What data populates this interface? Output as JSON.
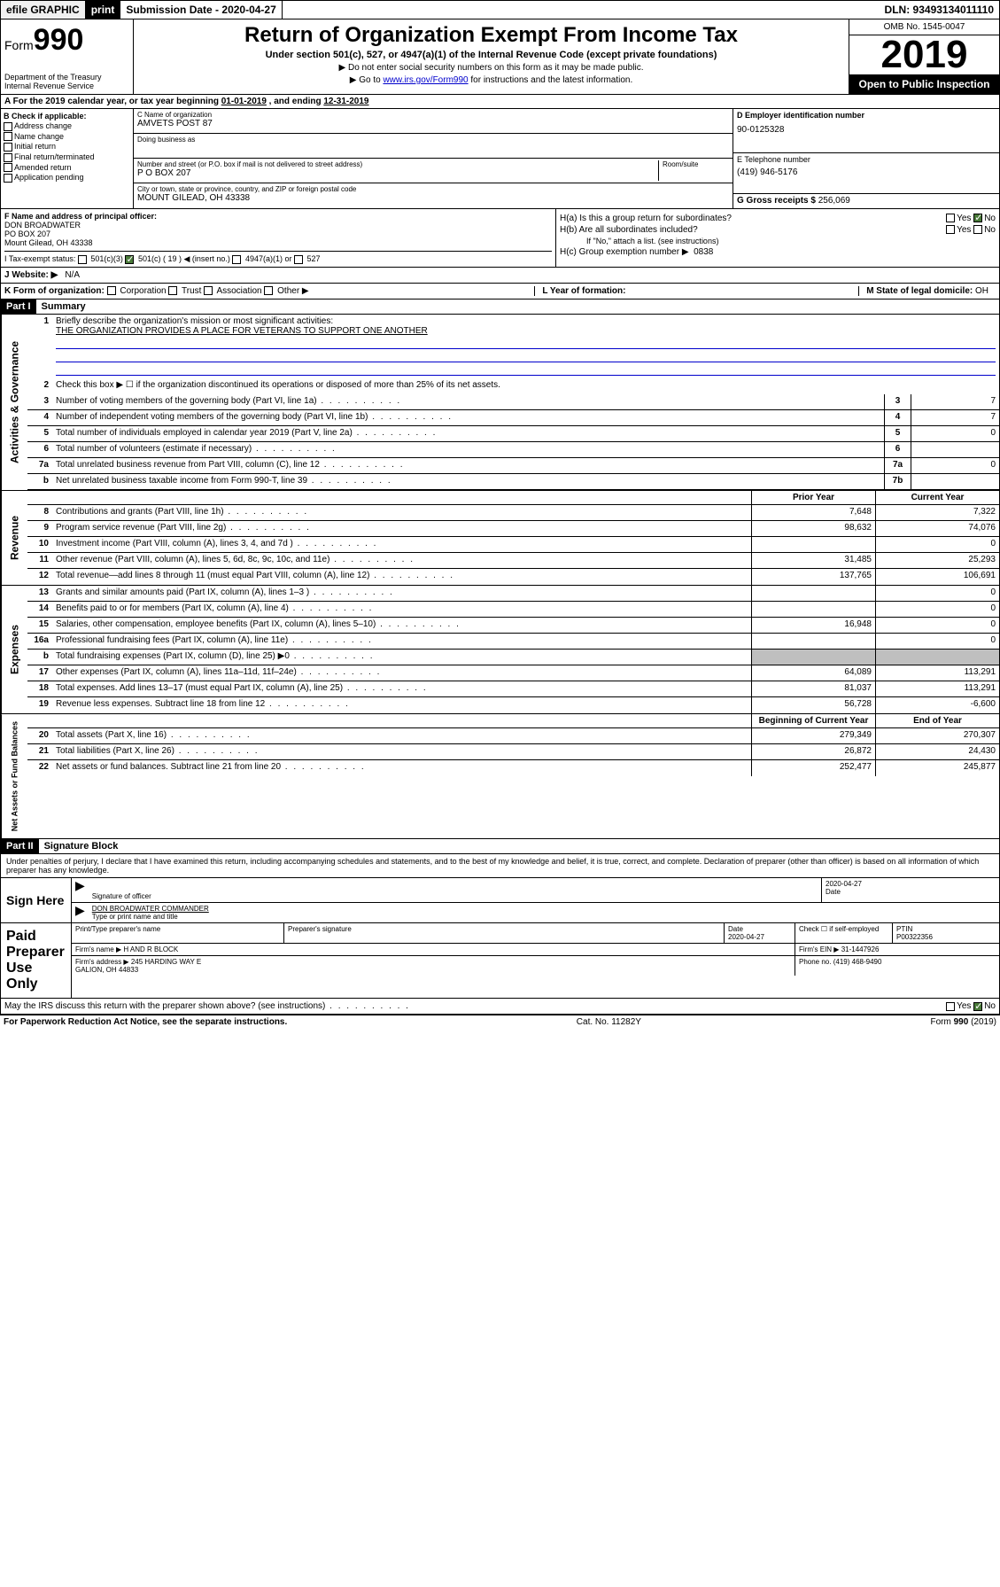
{
  "topbar": {
    "efile": "efile GRAPHIC",
    "print": "print",
    "submission_label": "Submission Date",
    "submission_date": "2020-04-27",
    "dln_label": "DLN:",
    "dln": "93493134011110"
  },
  "header": {
    "form_prefix": "Form",
    "form_number": "990",
    "title": "Return of Organization Exempt From Income Tax",
    "subtitle": "Under section 501(c), 527, or 4947(a)(1) of the Internal Revenue Code (except private foundations)",
    "note1": "▶ Do not enter social security numbers on this form as it may be made public.",
    "note2_pre": "▶ Go to ",
    "note2_link": "www.irs.gov/Form990",
    "note2_post": " for instructions and the latest information.",
    "dept": "Department of the Treasury\nInternal Revenue Service",
    "omb": "OMB No. 1545-0047",
    "year": "2019",
    "inspection": "Open to Public Inspection"
  },
  "period": {
    "text_pre": "A For the 2019 calendar year, or tax year beginning ",
    "begin": "01-01-2019",
    "text_mid": " , and ending ",
    "end": "12-31-2019"
  },
  "section_b": {
    "header": "B Check if applicable:",
    "items": [
      "Address change",
      "Name change",
      "Initial return",
      "Final return/terminated",
      "Amended return",
      "Application pending"
    ]
  },
  "section_c": {
    "name_label": "C Name of organization",
    "name": "AMVETS POST 87",
    "dba_label": "Doing business as",
    "dba": "",
    "addr_label": "Number and street (or P.O. box if mail is not delivered to street address)",
    "room_label": "Room/suite",
    "addr": "P O BOX 207",
    "city_label": "City or town, state or province, country, and ZIP or foreign postal code",
    "city": "MOUNT GILEAD, OH  43338"
  },
  "section_d": {
    "ein_label": "D Employer identification number",
    "ein": "90-0125328",
    "phone_label": "E Telephone number",
    "phone": "(419) 946-5176",
    "gross_label": "G Gross receipts $",
    "gross": "256,069"
  },
  "section_f": {
    "label": "F Name and address of principal officer:",
    "name": "DON BROADWATER",
    "addr1": "PO BOX 207",
    "addr2": "Mount Gilead, OH  43338"
  },
  "section_h": {
    "ha_label": "H(a)  Is this a group return for subordinates?",
    "hb_label": "H(b)  Are all subordinates included?",
    "hb_note": "If \"No,\" attach a list. (see instructions)",
    "hc_label": "H(c)  Group exemption number ▶",
    "hc_val": "0838",
    "yes": "Yes",
    "no": "No"
  },
  "section_i": {
    "label": "I Tax-exempt status:",
    "opts": [
      "501(c)(3)",
      "501(c) ( 19 ) ◀ (insert no.)",
      "4947(a)(1) or",
      "527"
    ]
  },
  "section_j": {
    "label": "J   Website: ▶",
    "val": "N/A"
  },
  "section_k": {
    "label": "K Form of organization:",
    "opts": [
      "Corporation",
      "Trust",
      "Association",
      "Other ▶"
    ]
  },
  "section_l": {
    "label": "L Year of formation:",
    "val": ""
  },
  "section_m": {
    "label": "M State of legal domicile:",
    "val": "OH"
  },
  "part1": {
    "header": "Part I",
    "title": "Summary",
    "mission_label": "Briefly describe the organization's mission or most significant activities:",
    "mission": "THE ORGANIZATION PROVIDES A PLACE FOR VETERANS TO SUPPORT ONE ANOTHER",
    "line2": "Check this box ▶ ☐  if the organization discontinued its operations or disposed of more than 25% of its net assets.",
    "side_governance": "Activities & Governance",
    "side_revenue": "Revenue",
    "side_expenses": "Expenses",
    "side_netassets": "Net Assets or Fund Balances",
    "col_prior": "Prior Year",
    "col_current": "Current Year",
    "col_begin": "Beginning of Current Year",
    "col_end": "End of Year",
    "lines_gov": [
      {
        "n": "3",
        "d": "Number of voting members of the governing body (Part VI, line 1a)",
        "box": "3",
        "v": "7"
      },
      {
        "n": "4",
        "d": "Number of independent voting members of the governing body (Part VI, line 1b)",
        "box": "4",
        "v": "7"
      },
      {
        "n": "5",
        "d": "Total number of individuals employed in calendar year 2019 (Part V, line 2a)",
        "box": "5",
        "v": "0"
      },
      {
        "n": "6",
        "d": "Total number of volunteers (estimate if necessary)",
        "box": "6",
        "v": ""
      },
      {
        "n": "7a",
        "d": "Total unrelated business revenue from Part VIII, column (C), line 12",
        "box": "7a",
        "v": "0"
      },
      {
        "n": "b",
        "d": "Net unrelated business taxable income from Form 990-T, line 39",
        "box": "7b",
        "v": ""
      }
    ],
    "lines_rev": [
      {
        "n": "8",
        "d": "Contributions and grants (Part VIII, line 1h)",
        "p": "7,648",
        "c": "7,322"
      },
      {
        "n": "9",
        "d": "Program service revenue (Part VIII, line 2g)",
        "p": "98,632",
        "c": "74,076"
      },
      {
        "n": "10",
        "d": "Investment income (Part VIII, column (A), lines 3, 4, and 7d )",
        "p": "",
        "c": "0"
      },
      {
        "n": "11",
        "d": "Other revenue (Part VIII, column (A), lines 5, 6d, 8c, 9c, 10c, and 11e)",
        "p": "31,485",
        "c": "25,293"
      },
      {
        "n": "12",
        "d": "Total revenue—add lines 8 through 11 (must equal Part VIII, column (A), line 12)",
        "p": "137,765",
        "c": "106,691"
      }
    ],
    "lines_exp": [
      {
        "n": "13",
        "d": "Grants and similar amounts paid (Part IX, column (A), lines 1–3 )",
        "p": "",
        "c": "0"
      },
      {
        "n": "14",
        "d": "Benefits paid to or for members (Part IX, column (A), line 4)",
        "p": "",
        "c": "0"
      },
      {
        "n": "15",
        "d": "Salaries, other compensation, employee benefits (Part IX, column (A), lines 5–10)",
        "p": "16,948",
        "c": "0"
      },
      {
        "n": "16a",
        "d": "Professional fundraising fees (Part IX, column (A), line 11e)",
        "p": "",
        "c": "0"
      },
      {
        "n": "b",
        "d": "Total fundraising expenses (Part IX, column (D), line 25) ▶0",
        "p": "shade",
        "c": "shade"
      },
      {
        "n": "17",
        "d": "Other expenses (Part IX, column (A), lines 11a–11d, 11f–24e)",
        "p": "64,089",
        "c": "113,291"
      },
      {
        "n": "18",
        "d": "Total expenses. Add lines 13–17 (must equal Part IX, column (A), line 25)",
        "p": "81,037",
        "c": "113,291"
      },
      {
        "n": "19",
        "d": "Revenue less expenses. Subtract line 18 from line 12",
        "p": "56,728",
        "c": "-6,600"
      }
    ],
    "lines_net": [
      {
        "n": "20",
        "d": "Total assets (Part X, line 16)",
        "p": "279,349",
        "c": "270,307"
      },
      {
        "n": "21",
        "d": "Total liabilities (Part X, line 26)",
        "p": "26,872",
        "c": "24,430"
      },
      {
        "n": "22",
        "d": "Net assets or fund balances. Subtract line 21 from line 20",
        "p": "252,477",
        "c": "245,877"
      }
    ]
  },
  "part2": {
    "header": "Part II",
    "title": "Signature Block",
    "perjury": "Under penalties of perjury, I declare that I have examined this return, including accompanying schedules and statements, and to the best of my knowledge and belief, it is true, correct, and complete. Declaration of preparer (other than officer) is based on all information of which preparer has any knowledge.",
    "sign_here": "Sign Here",
    "sig_officer": "Signature of officer",
    "sig_date": "2020-04-27",
    "date_label": "Date",
    "officer_name": "DON BROADWATER COMMANDER",
    "type_name": "Type or print name and title",
    "paid_preparer": "Paid Preparer Use Only",
    "prep_name_label": "Print/Type preparer's name",
    "prep_sig_label": "Preparer's signature",
    "prep_date": "2020-04-27",
    "check_if": "Check ☐ if self-employed",
    "ptin_label": "PTIN",
    "ptin": "P00322356",
    "firm_name_label": "Firm's name    ▶",
    "firm_name": "H AND R BLOCK",
    "firm_ein_label": "Firm's EIN ▶",
    "firm_ein": "31-1447926",
    "firm_addr_label": "Firm's address ▶",
    "firm_addr": "245 HARDING WAY E\nGALION, OH  44833",
    "firm_phone_label": "Phone no.",
    "firm_phone": "(419) 468-9490",
    "discuss": "May the IRS discuss this return with the preparer shown above? (see instructions)"
  },
  "footer": {
    "paperwork": "For Paperwork Reduction Act Notice, see the separate instructions.",
    "cat": "Cat. No. 11282Y",
    "form": "Form 990 (2019)"
  },
  "colors": {
    "link": "#0000cc",
    "shade": "#bfbfbf",
    "check_green": "#4a7a3a"
  }
}
